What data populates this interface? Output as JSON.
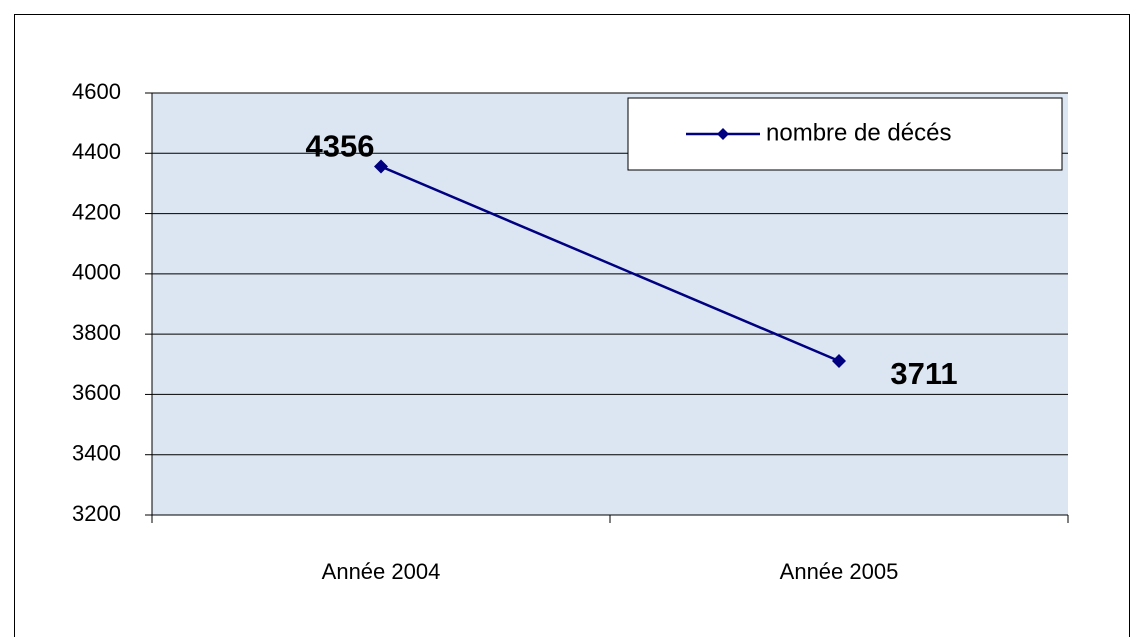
{
  "chart_data": {
    "type": "line",
    "categories": [
      "Année 2004",
      "Année 2005"
    ],
    "series": [
      {
        "name": "nombre de décés",
        "color": "#000080",
        "values": [
          4356,
          3711
        ]
      }
    ],
    "ylim": [
      3200,
      4600
    ],
    "yticks": [
      3200,
      3400,
      3600,
      3800,
      4000,
      4200,
      4400,
      4600
    ],
    "grid": true,
    "legend": "upper right"
  }
}
